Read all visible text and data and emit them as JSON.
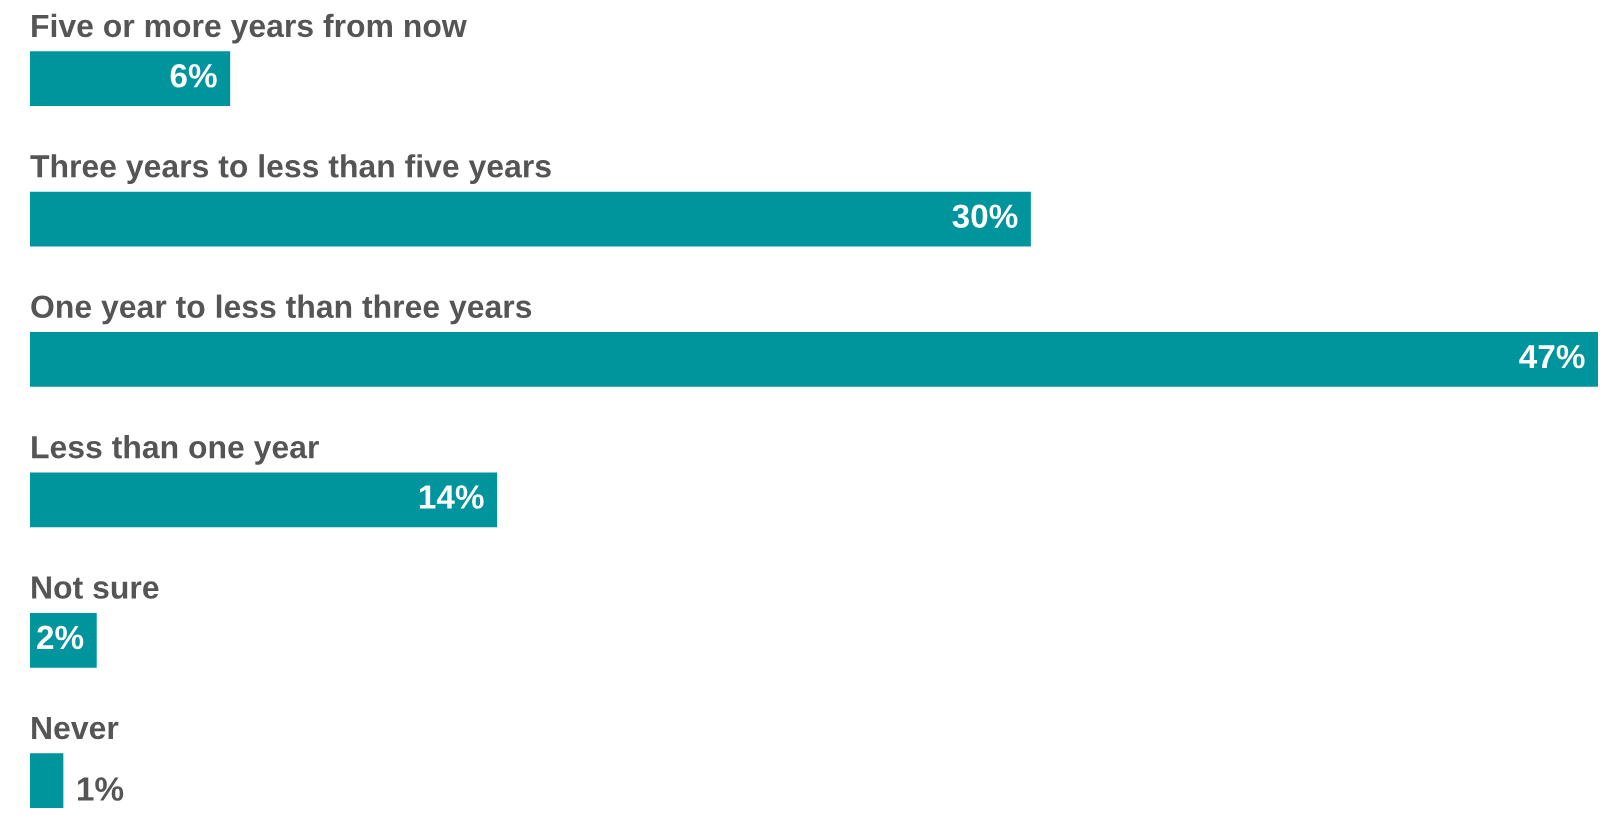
{
  "chart_data": {
    "type": "bar",
    "orientation": "horizontal",
    "categories": [
      "Five or more years from now",
      "Three years to less than five years",
      "One year to less than three years",
      "Less than one year",
      "Not sure",
      "Never"
    ],
    "values": [
      6,
      30,
      47,
      14,
      2,
      1
    ],
    "color": "#00949c",
    "data_labels": true,
    "value_labels": [
      "6%",
      "30%",
      "47%",
      "14%",
      "2%",
      "1%"
    ],
    "legend": false
  }
}
